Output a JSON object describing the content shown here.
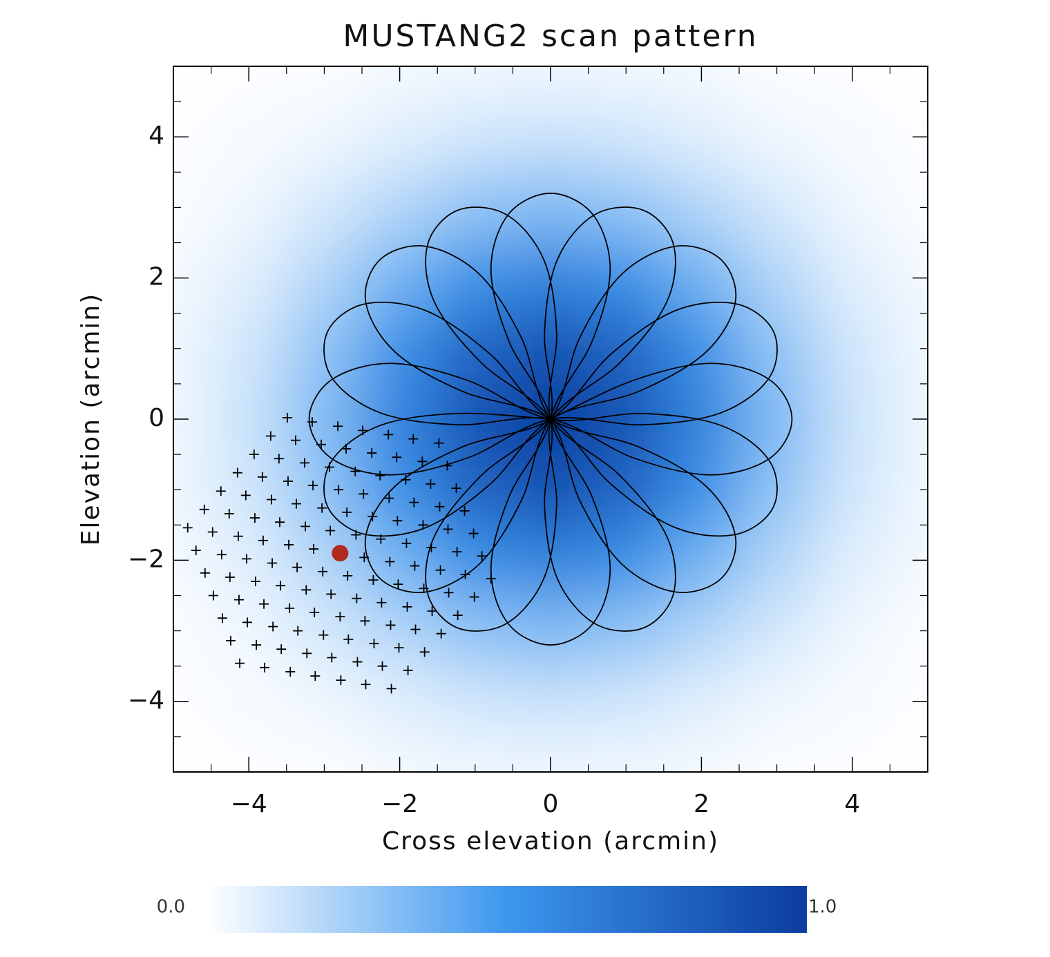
{
  "chart_data": {
    "type": "heatmap",
    "title": "MUSTANG2 scan pattern",
    "xlabel": "Cross elevation (arcmin)",
    "ylabel": "Elevation (arcmin)",
    "xlim": [
      -5,
      5
    ],
    "ylim": [
      -5,
      5
    ],
    "xticks": [
      {
        "value": -4,
        "label": "−4"
      },
      {
        "value": -2,
        "label": "−2"
      },
      0,
      2,
      4
    ],
    "yticks": [
      {
        "value": -4,
        "label": "−4"
      },
      {
        "value": -2,
        "label": "−2"
      },
      0,
      2,
      4
    ],
    "xminorticks": [
      -4.5,
      -3.5,
      -3,
      -2.5,
      -1.5,
      -1,
      -0.5,
      0.5,
      1,
      1.5,
      2.5,
      3,
      3.5,
      4.5
    ],
    "yminorticks": [
      -4.5,
      -3.5,
      -3,
      -2.5,
      -1.5,
      -1,
      -0.5,
      0.5,
      1,
      1.5,
      2.5,
      3,
      3.5,
      4.5
    ],
    "colormap": [
      "#ffffff",
      "#3d97ee",
      "#0b3c9f"
    ],
    "heatmap": {
      "x": [
        -5,
        -4,
        -3,
        -2,
        -1,
        0,
        1,
        2,
        3,
        4,
        5
      ],
      "y": [
        -5,
        -4,
        -3,
        -2,
        -1,
        0,
        1,
        2,
        3,
        4,
        5
      ],
      "z": [
        [
          0,
          0.01,
          0.01,
          0.03,
          0.04,
          0.04,
          0.04,
          0.03,
          0.01,
          0.01,
          0
        ],
        [
          0.01,
          0.02,
          0.04,
          0.08,
          0.12,
          0.14,
          0.12,
          0.08,
          0.04,
          0.02,
          0.01
        ],
        [
          0.01,
          0.04,
          0.11,
          0.2,
          0.29,
          0.33,
          0.29,
          0.2,
          0.11,
          0.04,
          0.01
        ],
        [
          0.03,
          0.08,
          0.2,
          0.37,
          0.54,
          0.61,
          0.54,
          0.37,
          0.2,
          0.08,
          0.03
        ],
        [
          0.04,
          0.12,
          0.29,
          0.54,
          0.78,
          0.88,
          0.78,
          0.54,
          0.29,
          0.12,
          0.04
        ],
        [
          0.04,
          0.14,
          0.33,
          0.61,
          0.88,
          1,
          0.88,
          0.61,
          0.33,
          0.14,
          0.04
        ],
        [
          0.04,
          0.12,
          0.29,
          0.54,
          0.78,
          0.88,
          0.78,
          0.54,
          0.29,
          0.12,
          0.04
        ],
        [
          0.03,
          0.08,
          0.2,
          0.37,
          0.54,
          0.61,
          0.54,
          0.37,
          0.2,
          0.08,
          0.03
        ],
        [
          0.01,
          0.04,
          0.11,
          0.2,
          0.29,
          0.33,
          0.29,
          0.2,
          0.11,
          0.04,
          0.01
        ],
        [
          0.01,
          0.02,
          0.04,
          0.08,
          0.12,
          0.14,
          0.12,
          0.08,
          0.04,
          0.02,
          0.01
        ],
        [
          0,
          0.01,
          0.01,
          0.03,
          0.04,
          0.04,
          0.04,
          0.03,
          0.01,
          0.01,
          0
        ]
      ]
    },
    "colorbar": {
      "range": [
        0,
        1
      ],
      "ticks": [
        {
          "value": 0,
          "label": "0.0"
        },
        {
          "value": 1,
          "label": "1.0"
        }
      ]
    },
    "series": [
      {
        "type": "line",
        "color": "#000000",
        "x": [
          0,
          1.1,
          2.12,
          2.9,
          3.2,
          2.9,
          2.12,
          1.1,
          0,
          -1.22,
          -2.26,
          -2.9,
          -2.96,
          -2.47,
          -1.66,
          -0.8,
          0,
          1.16,
          2.06,
          2.45,
          2.26,
          1.66,
          0.95,
          0.39,
          0,
          -0.92,
          -1.54,
          -1.63,
          -1.23,
          -0.59,
          -0.09,
          0.08,
          0,
          0.55,
          0.79,
          0.56,
          0,
          -0.56,
          -0.79,
          -0.55,
          0,
          -0.08,
          0.09,
          0.59,
          1.23,
          1.63,
          1.54,
          0.92,
          0,
          -0.39,
          -0.95,
          -1.66,
          -2.26,
          -2.45,
          -2.06,
          -1.16,
          0,
          0.8,
          1.66,
          2.47,
          2.96,
          2.9,
          2.26,
          1.22,
          0,
          -1.1,
          -2.12,
          -2.9,
          -3.2,
          -2.9,
          -2.12,
          -1.1,
          0,
          1.22,
          2.26,
          2.9,
          2.96,
          2.47,
          1.66,
          0.8,
          0,
          -1.16,
          -2.06,
          -2.45,
          -2.26,
          -1.66,
          -0.95,
          -0.39,
          0,
          0.92,
          1.54,
          1.63,
          1.23,
          0.59,
          0.09,
          -0.08,
          0,
          -0.55,
          -0.79,
          -0.56,
          0,
          0.56,
          0.79,
          0.55,
          0,
          0.08,
          -0.09,
          -0.59,
          -1.23,
          -1.63,
          -1.54,
          -0.92,
          0,
          0.39,
          0.95,
          1.66,
          2.26,
          2.45,
          2.06,
          1.16,
          0,
          -0.8,
          -1.66,
          -2.47,
          -2.96,
          -2.9,
          -2.26,
          -1.22,
          0
        ],
        "y": [
          0,
          0.55,
          0.79,
          0.56,
          0,
          -0.56,
          -0.79,
          -0.55,
          0,
          -0.08,
          0.09,
          0.59,
          1.23,
          1.63,
          1.54,
          0.92,
          0,
          -0.39,
          -0.95,
          -1.66,
          -2.26,
          -2.45,
          -2.06,
          -1.16,
          0,
          0.8,
          1.66,
          2.47,
          2.96,
          2.9,
          2.26,
          1.22,
          0,
          -1.1,
          -2.12,
          -2.9,
          -3.2,
          -2.9,
          -2.12,
          -1.1,
          0,
          1.22,
          2.26,
          2.9,
          2.96,
          2.47,
          1.66,
          0.8,
          0,
          -1.16,
          -2.06,
          -2.45,
          -2.26,
          -1.66,
          -0.95,
          -0.39,
          0,
          0.92,
          1.54,
          1.63,
          1.23,
          0.59,
          0.09,
          -0.08,
          0,
          -0.55,
          -0.79,
          -0.56,
          0,
          0.56,
          0.79,
          0.55,
          0,
          0.08,
          -0.09,
          -0.59,
          -1.23,
          -1.63,
          -1.54,
          -0.92,
          0,
          0.39,
          0.95,
          1.66,
          2.26,
          2.45,
          2.06,
          1.16,
          0,
          -0.8,
          -1.66,
          -2.47,
          -2.96,
          -2.9,
          -2.26,
          -1.22,
          0,
          1.1,
          2.12,
          2.9,
          3.2,
          2.9,
          2.12,
          1.1,
          0,
          -1.22,
          -2.26,
          -2.9,
          -2.96,
          -2.47,
          -1.66,
          -0.8,
          0,
          1.16,
          2.06,
          2.45,
          2.26,
          1.66,
          0.95,
          0.39,
          0,
          -0.92,
          -1.54,
          -1.63,
          -1.23,
          -0.59,
          -0.09,
          0.08,
          0
        ]
      },
      {
        "type": "scatter",
        "marker": "plus",
        "color": "#000000",
        "x": [
          -4.12,
          -3.79,
          -3.45,
          -3.12,
          -2.78,
          -2.45,
          -2.11,
          -4.24,
          -3.9,
          -3.57,
          -3.23,
          -2.9,
          -2.56,
          -2.23,
          -1.89,
          -4.35,
          -4.02,
          -3.68,
          -3.35,
          -3.01,
          -2.68,
          -2.34,
          -2.01,
          -1.67,
          -4.47,
          -4.13,
          -3.8,
          -3.46,
          -3.13,
          -2.79,
          -2.46,
          -2.12,
          -1.79,
          -1.45,
          -4.58,
          -4.25,
          -3.91,
          -3.58,
          -3.24,
          -2.91,
          -2.57,
          -2.24,
          -1.9,
          -1.57,
          -1.23,
          -4.7,
          -4.36,
          -4.03,
          -3.69,
          -3.36,
          -3.02,
          -2.69,
          -2.35,
          -2.02,
          -1.68,
          -1.35,
          -1.01,
          -4.81,
          -4.48,
          -4.14,
          -3.81,
          -3.47,
          -3.14,
          -2.8,
          -2.47,
          -2.13,
          -1.8,
          -1.46,
          -1.13,
          -0.79,
          -4.59,
          -4.26,
          -3.92,
          -3.59,
          -3.25,
          -2.92,
          -2.58,
          -2.25,
          -1.91,
          -1.58,
          -1.24,
          -0.91,
          -4.37,
          -4.04,
          -3.7,
          -3.37,
          -3.03,
          -2.7,
          -2.36,
          -2.03,
          -1.69,
          -1.36,
          -1.02,
          -4.15,
          -3.82,
          -3.48,
          -3.15,
          -2.81,
          -2.48,
          -2.14,
          -1.81,
          -1.47,
          -1.14,
          -3.93,
          -3.6,
          -3.26,
          -2.93,
          -2.59,
          -2.26,
          -1.92,
          -1.59,
          -1.25,
          -3.71,
          -3.38,
          -3.04,
          -2.71,
          -2.37,
          -2.04,
          -1.7,
          -1.37,
          -3.49,
          -3.16,
          -2.82,
          -2.49,
          -2.15,
          -1.82,
          -1.48
        ],
        "y": [
          -3.46,
          -3.52,
          -3.58,
          -3.64,
          -3.7,
          -3.76,
          -3.82,
          -3.14,
          -3.2,
          -3.26,
          -3.32,
          -3.38,
          -3.44,
          -3.5,
          -3.56,
          -2.82,
          -2.88,
          -2.94,
          -3.0,
          -3.06,
          -3.12,
          -3.18,
          -3.24,
          -3.3,
          -2.5,
          -2.56,
          -2.62,
          -2.68,
          -2.74,
          -2.8,
          -2.86,
          -2.92,
          -2.98,
          -3.04,
          -2.18,
          -2.24,
          -2.3,
          -2.36,
          -2.42,
          -2.48,
          -2.54,
          -2.6,
          -2.66,
          -2.72,
          -2.78,
          -1.86,
          -1.92,
          -1.98,
          -2.04,
          -2.1,
          -2.16,
          -2.22,
          -2.28,
          -2.34,
          -2.4,
          -2.46,
          -2.52,
          -1.54,
          -1.6,
          -1.66,
          -1.72,
          -1.78,
          -1.84,
          -1.9,
          -1.96,
          -2.02,
          -2.08,
          -2.14,
          -2.2,
          -2.26,
          -1.28,
          -1.34,
          -1.4,
          -1.46,
          -1.52,
          -1.58,
          -1.64,
          -1.7,
          -1.76,
          -1.82,
          -1.88,
          -1.94,
          -1.02,
          -1.08,
          -1.14,
          -1.2,
          -1.26,
          -1.32,
          -1.38,
          -1.44,
          -1.5,
          -1.56,
          -1.62,
          -0.76,
          -0.82,
          -0.88,
          -0.94,
          -1.0,
          -1.06,
          -1.12,
          -1.18,
          -1.24,
          -1.3,
          -0.5,
          -0.56,
          -0.62,
          -0.68,
          -0.74,
          -0.8,
          -0.86,
          -0.92,
          -0.98,
          -0.24,
          -0.3,
          -0.36,
          -0.42,
          -0.48,
          -0.54,
          -0.6,
          -0.66,
          0.02,
          -0.04,
          -0.1,
          -0.16,
          -0.22,
          -0.28,
          -0.34
        ]
      },
      {
        "type": "scatter",
        "marker": "circle",
        "color": "#b02a1c",
        "x": [
          -2.79
        ],
        "y": [
          -1.9
        ]
      }
    ]
  }
}
